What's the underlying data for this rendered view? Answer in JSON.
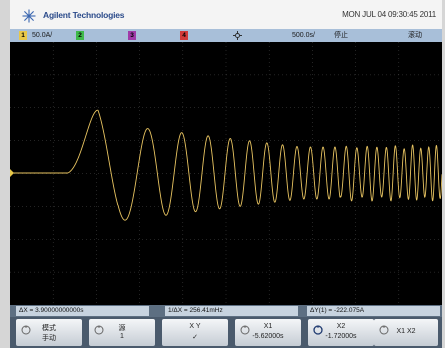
{
  "header": {
    "brand": "Agilent Technologies",
    "datetime": "MON JUL 04 09:30:45 2011",
    "brand_icon": "agilent-spark-icon"
  },
  "status": {
    "ch1_num": "1",
    "ch1_scale": "50.0A/",
    "ch2_num": "2",
    "ch3_num": "3",
    "ch4_num": "4",
    "trigger_pos_icon": "trigger-position-icon",
    "timebase": "500.0s/",
    "run_state": "停止",
    "trigger_mode": "滚动",
    "colors": {
      "ch1": "#e8c84a",
      "ch2": "#3fb94a",
      "ch3": "#a03aa8",
      "ch4": "#d03a3a"
    }
  },
  "waveform": {
    "color": "#e8c461",
    "grid_color": "#5a5a5a",
    "divisions_x": 10,
    "divisions_y": 8
  },
  "measure": {
    "delta_x": "ΔX = 3.90000000000s",
    "inv_delta_x": "1/ΔX = 256.41mHz",
    "delta_y": "ΔY(1) = -222.075A"
  },
  "softkeys": {
    "mode_line1": "模式",
    "mode_line2": "手动",
    "source_line1": "源",
    "source_line2": "1",
    "xy_line1": "X     Y",
    "xy_line2": "✓",
    "x1_line1": "X1",
    "x1_line2": "-5.62000s",
    "x2_line1": "X2",
    "x2_line2": "-1.72000s",
    "x1x2": "X1 X2"
  }
}
